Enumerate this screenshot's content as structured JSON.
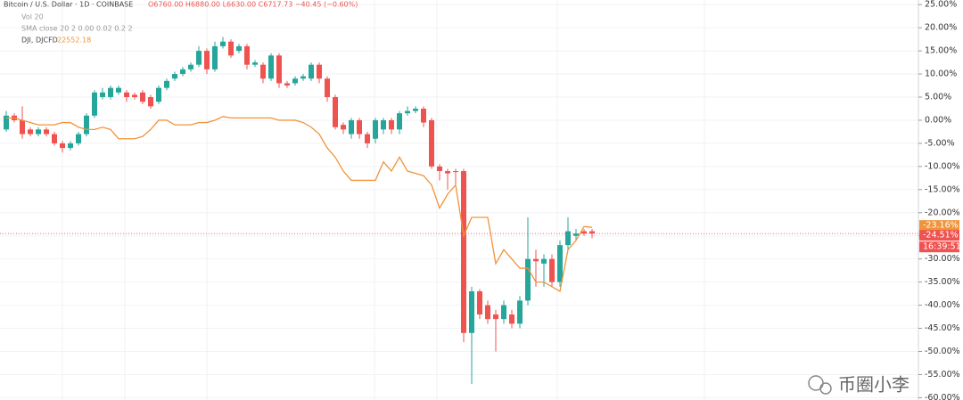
{
  "chart_data": {
    "type": "candlestick",
    "legend_title": "Bitcoin / U.S. Dollar · 1D · COINBASE",
    "legend_ohlc": "O6760.00 H6880.00 L6630.00 C6717.73 −40.45 (−0.60%)",
    "indicator_vol": "Vol 20",
    "indicator_sma": "SMA close 20 2 0.00 0.02 0.2 2",
    "watermark": "币圈小李",
    "time_label": "16:39:51",
    "up_color": "#26a69a",
    "down_color": "#ef5350",
    "ylim": [
      -60.5,
      26
    ],
    "yticks": [
      {
        "value": 25,
        "label": "25.00%"
      },
      {
        "value": 20,
        "label": "20.00%"
      },
      {
        "value": 15,
        "label": "15.00%"
      },
      {
        "value": 10,
        "label": "10.00%"
      },
      {
        "value": 5,
        "label": "5.00%"
      },
      {
        "value": 0,
        "label": "0.00%"
      },
      {
        "value": -5,
        "label": "-5.00%"
      },
      {
        "value": -10,
        "label": "-10.00%"
      },
      {
        "value": -15,
        "label": "-15.00%"
      },
      {
        "value": -20,
        "label": "-20.00%"
      },
      {
        "value": -25,
        "label": "-25.00%"
      },
      {
        "value": -30,
        "label": "-30.00%"
      },
      {
        "value": -35,
        "label": "-35.00%"
      },
      {
        "value": -40,
        "label": "-40.00%"
      },
      {
        "value": -45,
        "label": "-45.00%"
      },
      {
        "value": -50,
        "label": "-50.00%"
      },
      {
        "value": -55,
        "label": "-55.00%"
      },
      {
        "value": -60,
        "label": "-60.00%"
      }
    ],
    "grid": true,
    "price_labels": [
      {
        "value": -23.16,
        "label": "-23.16%",
        "color": "#f0943a"
      },
      {
        "value": -24.51,
        "label": "-24.51%",
        "color": "#ef5350"
      }
    ],
    "open": [
      -2,
      1,
      0,
      -2,
      -3,
      -2,
      -3,
      -5,
      -6,
      -5,
      -3,
      1,
      5,
      5,
      6,
      6,
      5.5,
      6,
      5,
      4,
      7,
      9,
      10,
      11,
      12,
      15,
      11,
      16,
      17,
      15,
      16,
      12,
      12,
      9,
      14,
      8,
      8,
      9,
      9,
      12,
      9,
      5,
      -1,
      -3,
      0,
      -3,
      -4,
      -2,
      0,
      -2,
      1.5,
      2,
      2.5,
      0,
      -10,
      -11,
      -11,
      -11,
      -46,
      -37,
      -40,
      -42,
      -43,
      -42,
      -44,
      -39,
      -30,
      -31,
      -30,
      -35,
      -27,
      -25,
      -24,
      -24
    ],
    "close": [
      1,
      0,
      -3,
      -3,
      -2,
      -3,
      -5,
      -6,
      -5,
      -3,
      1,
      6,
      6,
      7,
      7,
      5,
      5,
      4,
      3,
      7,
      8.5,
      10,
      11,
      12,
      15,
      11,
      16,
      17,
      14,
      16,
      12,
      12.5,
      9,
      14,
      8,
      7.5,
      9,
      9.5,
      12,
      9,
      5,
      -1.5,
      -2,
      0,
      -3,
      -5,
      0,
      0,
      -2,
      1.5,
      2,
      2.5,
      -0.5,
      -10,
      -11,
      -11.5,
      -11.2,
      -46,
      -37,
      -42,
      -43,
      -43,
      -40,
      -44,
      -39,
      -30,
      -30.5,
      -30,
      -35,
      -27,
      -24,
      -24.5,
      -24.5,
      -24.51
    ],
    "high": [
      2,
      1.5,
      3,
      -1.5,
      -1.5,
      -1.5,
      -2.5,
      -4.5,
      -4.5,
      -2.5,
      1.5,
      6.5,
      7,
      7.5,
      7.5,
      6.5,
      6,
      6.5,
      5.5,
      7.5,
      9,
      10.5,
      11.5,
      12.5,
      16,
      15.5,
      17,
      18,
      17.5,
      16.5,
      16.5,
      13,
      12.5,
      14.5,
      14.5,
      8.5,
      9.5,
      10,
      12.5,
      12.5,
      9.5,
      5.5,
      -0.5,
      0.5,
      0.5,
      -2.5,
      0.5,
      0.5,
      0.5,
      2,
      3,
      3,
      3,
      0.5,
      -9.5,
      -10.5,
      -10.5,
      -10.5,
      -36,
      -36.5,
      -39,
      -41,
      -39,
      -41,
      -38,
      -21,
      -28,
      -29,
      -29,
      -26,
      -21,
      -23.5,
      -23.5,
      -23.5
    ],
    "low": [
      -2.5,
      -0.5,
      -4,
      -3.5,
      -3.5,
      -3.5,
      -5.5,
      -7,
      -6.5,
      -5.5,
      -3.5,
      0.5,
      4.5,
      4.5,
      5.5,
      4,
      4.5,
      3.5,
      2.5,
      3.5,
      6.5,
      8.5,
      9.5,
      10.5,
      11.5,
      10,
      10.5,
      15.5,
      13.5,
      14.5,
      11,
      11.5,
      8,
      8.5,
      7,
      7,
      7.5,
      8.5,
      8.5,
      8,
      4,
      -2,
      -3,
      -4,
      -4,
      -6,
      -5,
      -3,
      -3,
      -3,
      1,
      1.5,
      -1.5,
      -10.5,
      -13,
      -15,
      -14,
      -48,
      -57,
      -43,
      -44,
      -50,
      -44,
      -45,
      -45,
      -40,
      -36,
      -36,
      -36,
      -36,
      -28,
      -26,
      -25,
      -25.5
    ],
    "series": [
      {
        "name": "DJI, DJCFD",
        "last": 22552.18,
        "color": "#f0943a",
        "values": [
          0.5,
          0.5,
          0,
          -0.5,
          -1,
          -1,
          -1,
          -0.5,
          -0.5,
          -1.5,
          -2,
          -2,
          -1.5,
          -2,
          -4,
          -4,
          -4,
          -3.5,
          -2,
          0,
          0,
          -1,
          -1,
          -1,
          -0.5,
          -0.5,
          0,
          0.8,
          0.5,
          0.5,
          0.5,
          0.5,
          0.5,
          0.5,
          0,
          0,
          0,
          -0.5,
          -1.5,
          -3,
          -6,
          -8,
          -11,
          -13,
          -13,
          -13,
          -13,
          -9,
          -11,
          -8,
          -11,
          -11.5,
          -12,
          -14,
          -19,
          -16,
          -14,
          -25,
          -21,
          -21,
          -21,
          -31,
          -28,
          -30,
          -32,
          -32,
          -35,
          -35,
          -36,
          -37,
          -28,
          -26,
          -23,
          -23.16
        ]
      }
    ]
  }
}
